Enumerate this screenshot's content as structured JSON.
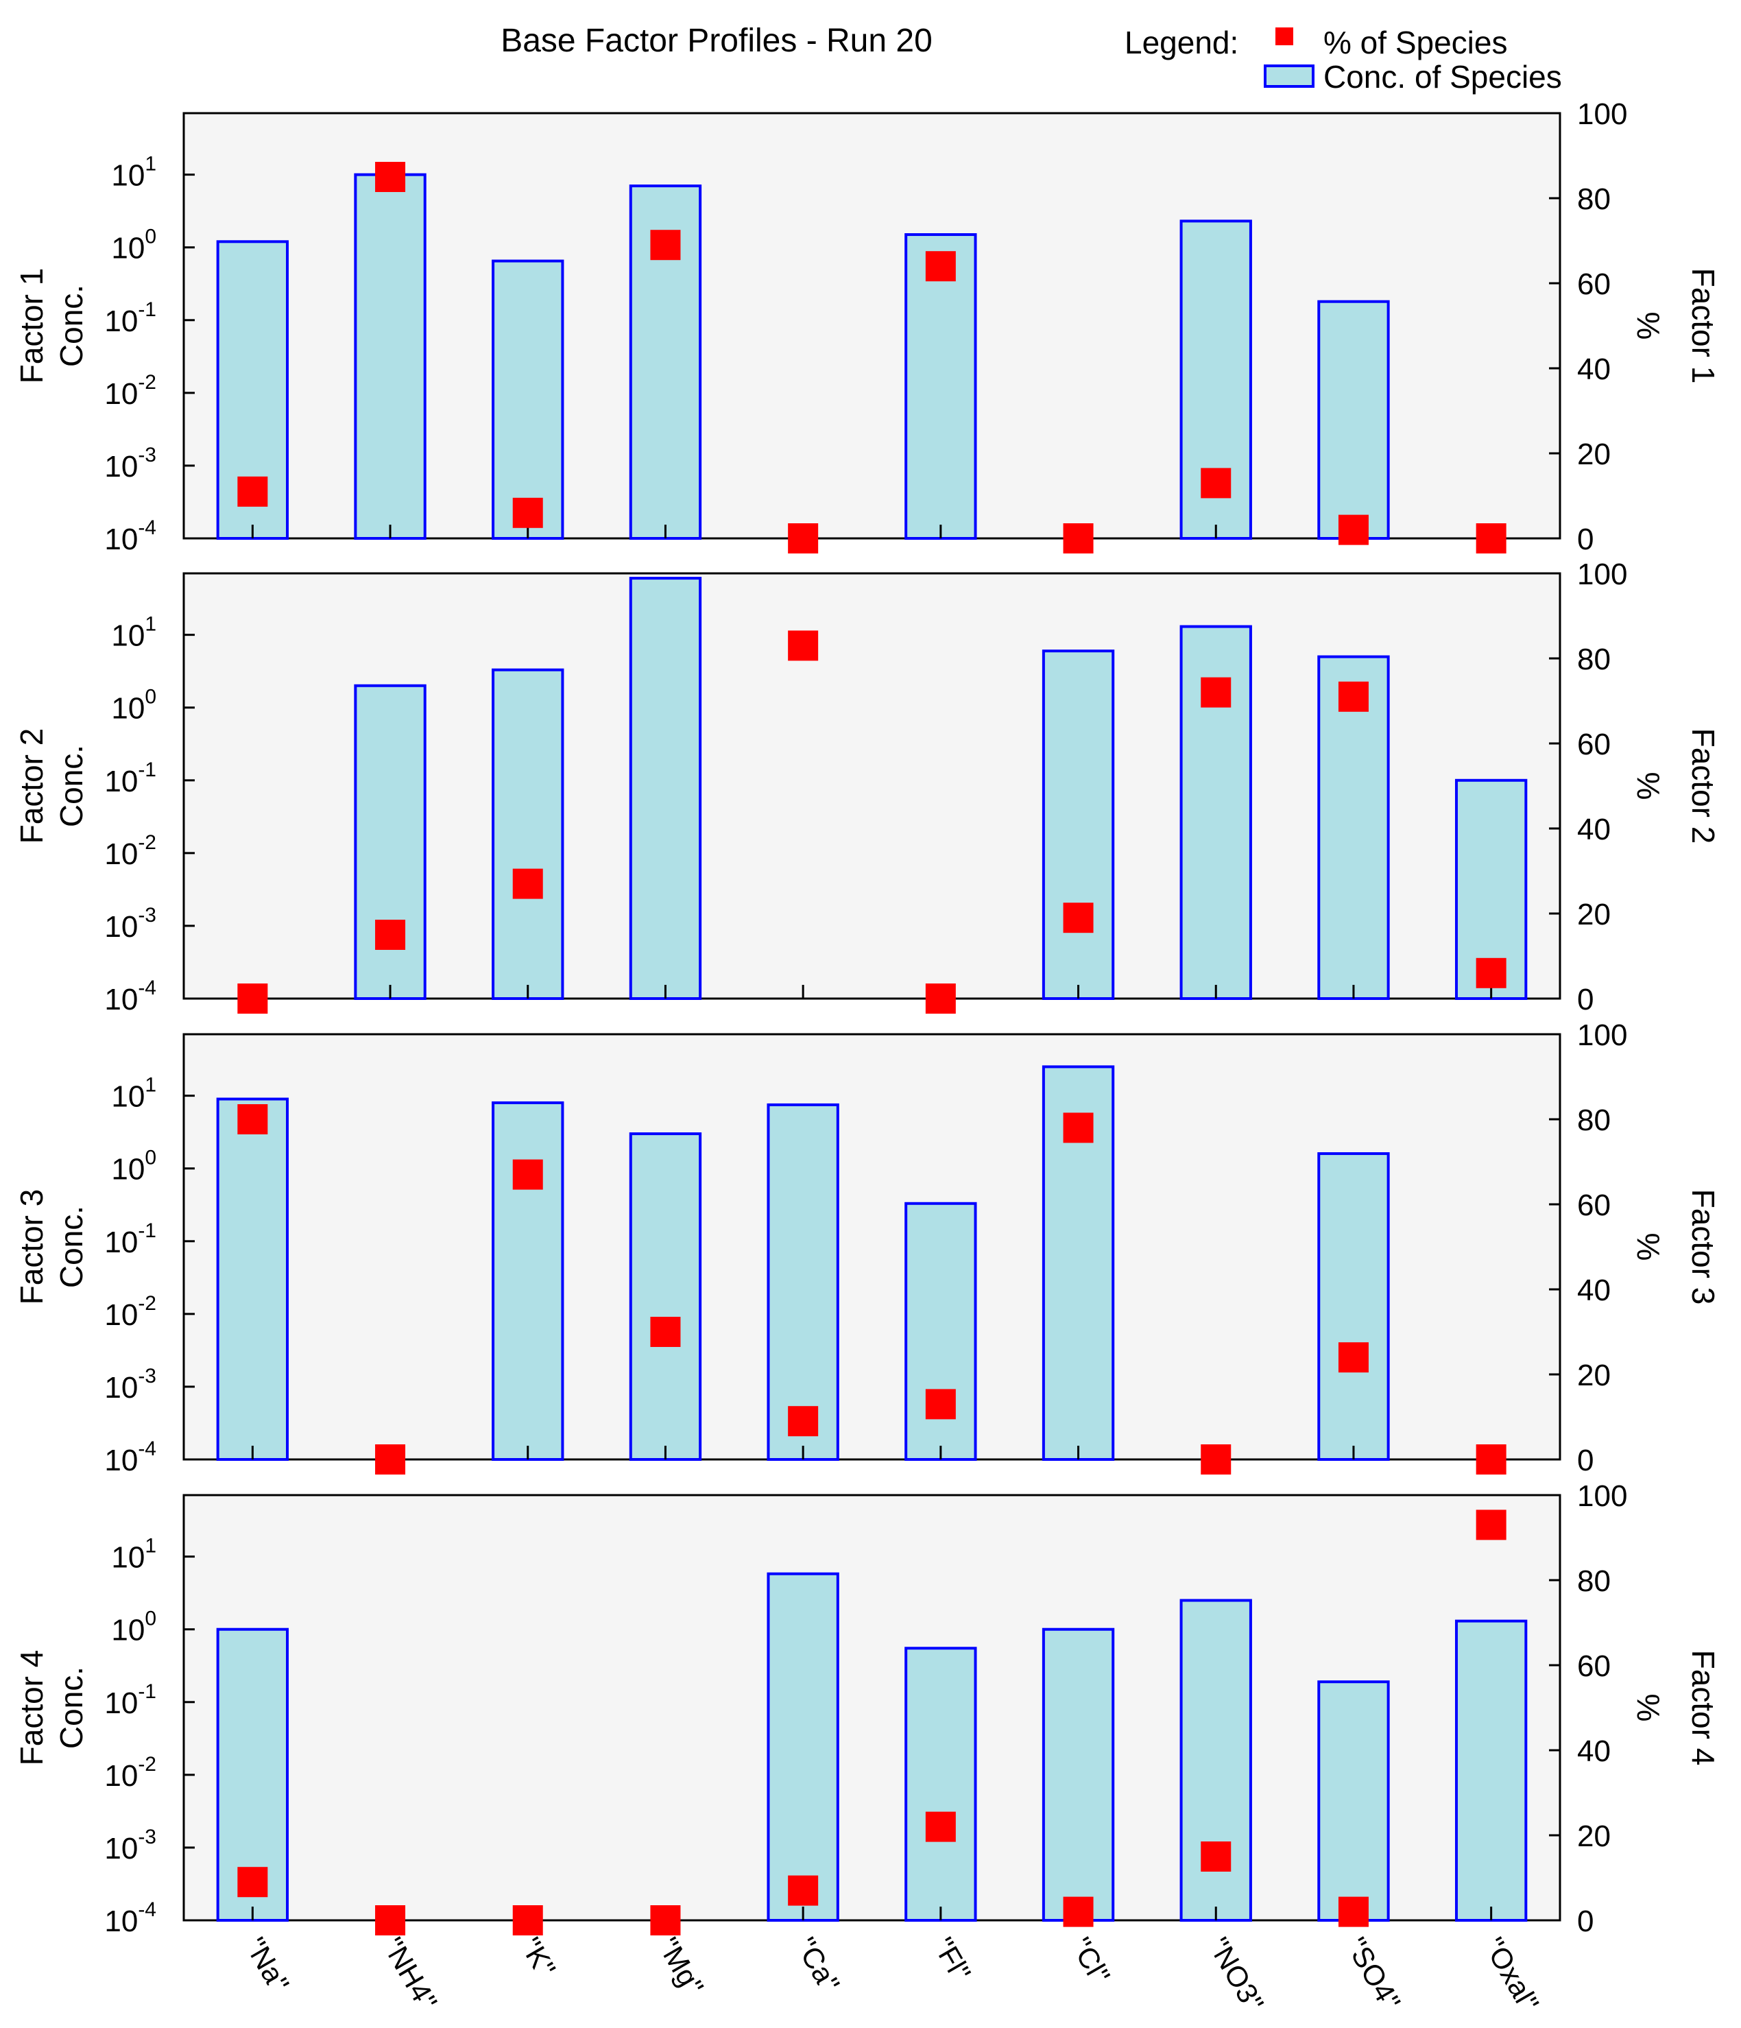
{
  "chart_data": {
    "type": "bar",
    "title": "Base Factor Profiles - Run 20",
    "legend": {
      "label": "Legend:",
      "entries": [
        {
          "name": "% of Species",
          "marker": "square",
          "color": "#ff0000"
        },
        {
          "name": "Conc. of Species",
          "marker": "bar",
          "fill": "#b0e0e6",
          "stroke": "#0000ff"
        }
      ],
      "placement": "top-right"
    },
    "categories": [
      "\"Na\"",
      "\"NH4\"",
      "\"K\"",
      "\"Mg\"",
      "\"Ca\"",
      "\"Fl\"",
      "\"Cl\"",
      "\"NO3\"",
      "\"SO4\"",
      "\"Oxal\""
    ],
    "left_axis": {
      "scale": "log",
      "ylim": [
        0.0001,
        70
      ],
      "ticks": [
        {
          "base": "10",
          "exp": "-4",
          "value": 0.0001
        },
        {
          "base": "10",
          "exp": "-3",
          "value": 0.001
        },
        {
          "base": "10",
          "exp": "-2",
          "value": 0.01
        },
        {
          "base": "10",
          "exp": "-1",
          "value": 0.1
        },
        {
          "base": "10",
          "exp": "0",
          "value": 1
        },
        {
          "base": "10",
          "exp": "1",
          "value": 10
        }
      ]
    },
    "right_axis": {
      "scale": "linear",
      "ylim": [
        0,
        100
      ],
      "ticks": [
        "0",
        "20",
        "40",
        "60",
        "80",
        "100"
      ],
      "unit_label": "%"
    },
    "colors": {
      "bar_fill": "#b0e0e6",
      "bar_stroke": "#0000ff",
      "marker": "#ff0000",
      "plot_bg": "#f5f5f5",
      "frame": "#000000"
    },
    "panels": [
      {
        "name": "Factor 1",
        "left_label": [
          "Factor 1",
          "Conc."
        ],
        "right_label": "Factor 1",
        "conc": [
          1.2,
          10,
          0.65,
          7,
          null,
          1.5,
          null,
          2.3,
          0.18,
          null
        ],
        "percent": [
          11,
          85,
          6,
          69,
          0,
          64,
          0,
          13,
          2,
          0
        ]
      },
      {
        "name": "Factor 2",
        "left_label": [
          "Factor 2",
          "Conc."
        ],
        "right_label": "Factor 2",
        "conc": [
          null,
          2.0,
          3.3,
          60,
          null,
          null,
          6.0,
          13,
          5.0,
          0.1
        ],
        "percent": [
          0,
          15,
          27,
          null,
          83,
          0,
          19,
          72,
          71,
          6
        ]
      },
      {
        "name": "Factor 3",
        "left_label": [
          "Factor 3",
          "Conc."
        ],
        "right_label": "Factor 3",
        "conc": [
          9.0,
          null,
          8.0,
          3.0,
          7.5,
          0.33,
          25,
          null,
          1.6,
          null
        ],
        "percent": [
          80,
          0,
          67,
          30,
          9,
          13,
          78,
          0,
          24,
          0
        ]
      },
      {
        "name": "Factor 4",
        "left_label": [
          "Factor 4",
          "Conc."
        ],
        "right_label": "Factor 4",
        "conc": [
          1.0,
          null,
          null,
          null,
          5.8,
          0.55,
          1.0,
          2.5,
          0.19,
          1.3
        ],
        "percent": [
          9,
          0,
          0,
          0,
          7,
          22,
          2,
          15,
          2,
          93
        ]
      }
    ]
  }
}
